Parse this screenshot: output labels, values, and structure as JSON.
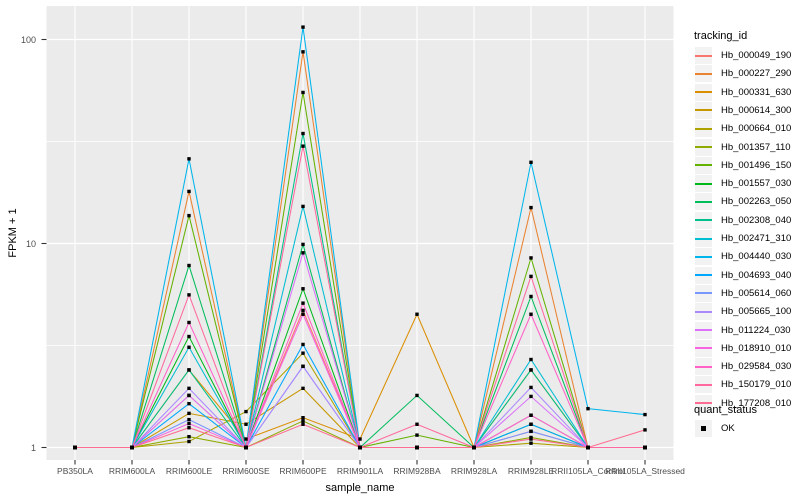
{
  "figure": {
    "background": "#FFFFFF",
    "panel_background": "#EBEBEB",
    "grid_color": "#FFFFFF",
    "tick_color": "#333333",
    "tick_label_color": "#4D4D4D",
    "point_color": "#000000"
  },
  "legend": {
    "tracking_title": "tracking_id",
    "quant_title": "quant_status",
    "quant_items": [
      {
        "label": "OK",
        "shape": "filled-square",
        "color": "#000000"
      }
    ]
  },
  "chart_data": {
    "type": "line",
    "title": "",
    "xlabel": "sample_name",
    "ylabel": "FPKM + 1",
    "y_scale": "log10",
    "y_ticks": [
      1,
      10,
      100
    ],
    "y_minor_ticks": [
      3.162,
      31.62
    ],
    "ylim": [
      0.79,
      146
    ],
    "grid": true,
    "legend_position": "right",
    "point_shape": "filled-square",
    "point_color": "#000000",
    "categories": [
      "PB350LA",
      "RRIM600LA",
      "RRIM600LE",
      "RRIM600SE",
      "RRIM600PE",
      "RRIM901LA",
      "RRIM928BA",
      "RRIM928LA",
      "RRIM928LE",
      "RRII105LA_Control",
      "RRII105LA_Stressed"
    ],
    "series": [
      {
        "name": "Hb_000049_190",
        "color": "#F8766D",
        "values": [
          1,
          1,
          1.8,
          1,
          4.7,
          1,
          1,
          1,
          1.2,
          1,
          1
        ]
      },
      {
        "name": "Hb_000227_290",
        "color": "#EA8331",
        "values": [
          1,
          1,
          18,
          1,
          87,
          1,
          1,
          1,
          15,
          1,
          1
        ]
      },
      {
        "name": "Hb_000331_630",
        "color": "#DB8E00",
        "values": [
          1,
          1,
          2.4,
          1.1,
          1.4,
          1.1,
          4.5,
          1,
          2.4,
          1,
          1
        ]
      },
      {
        "name": "Hb_000614_300",
        "color": "#C79800",
        "values": [
          1,
          1,
          1.47,
          1.3,
          1.95,
          1,
          1,
          1,
          1.44,
          1,
          1
        ]
      },
      {
        "name": "Hb_000664_010",
        "color": "#AEA200",
        "values": [
          1,
          1,
          1.07,
          1.5,
          2.9,
          1,
          1,
          1,
          1.05,
          1,
          1
        ]
      },
      {
        "name": "Hb_001357_110",
        "color": "#8FAA00",
        "values": [
          1,
          1,
          1.13,
          1,
          1.35,
          1,
          1,
          1,
          1.12,
          1,
          1
        ]
      },
      {
        "name": "Hb_001496_150",
        "color": "#64B200",
        "values": [
          1,
          1,
          13.7,
          1,
          55,
          1,
          1.15,
          1,
          8.5,
          1,
          1
        ]
      },
      {
        "name": "Hb_001557_030",
        "color": "#00B81B",
        "values": [
          1,
          1,
          3.5,
          1,
          6,
          1,
          1,
          1,
          1.3,
          1,
          1
        ]
      },
      {
        "name": "Hb_002263_050",
        "color": "#00BD5C",
        "values": [
          1,
          1,
          7.8,
          1,
          9.9,
          1,
          1.8,
          1,
          5.5,
          1,
          1
        ]
      },
      {
        "name": "Hb_002308_040",
        "color": "#00C08B",
        "values": [
          1,
          1,
          2.4,
          1,
          34.6,
          1,
          1,
          1,
          2.4,
          1,
          1
        ]
      },
      {
        "name": "Hb_002471_310",
        "color": "#00BDD2",
        "values": [
          1,
          1,
          3.1,
          1,
          15.2,
          1,
          1,
          1,
          2.7,
          1,
          1
        ]
      },
      {
        "name": "Hb_004440_030",
        "color": "#00B5EC",
        "values": [
          1,
          1,
          26,
          1,
          115,
          1,
          1,
          1,
          25,
          1.55,
          1.45
        ]
      },
      {
        "name": "Hb_004693_040",
        "color": "#00A7FF",
        "values": [
          1,
          1,
          1.64,
          1,
          3.2,
          1,
          1,
          1,
          1.3,
          1,
          1
        ]
      },
      {
        "name": "Hb_005614_060",
        "color": "#7997FF",
        "values": [
          1,
          1,
          1.37,
          1,
          2.5,
          1,
          1,
          1,
          1.2,
          1,
          1
        ]
      },
      {
        "name": "Hb_005665_100",
        "color": "#AC88FF",
        "values": [
          1,
          1,
          1.95,
          1,
          2.5,
          1,
          1,
          1,
          1.97,
          1,
          1
        ]
      },
      {
        "name": "Hb_011224_030",
        "color": "#DC71FA",
        "values": [
          1,
          1,
          1.8,
          1,
          9,
          1,
          1,
          1,
          1.78,
          1,
          1
        ]
      },
      {
        "name": "Hb_018910_010",
        "color": "#F763E0",
        "values": [
          1,
          1,
          1.31,
          1,
          4.5,
          1,
          1,
          1,
          1.44,
          1,
          1
        ]
      },
      {
        "name": "Hb_029584_030",
        "color": "#FF61C7",
        "values": [
          1,
          1,
          4.1,
          1,
          5.1,
          1,
          1,
          1,
          4.5,
          1,
          1
        ]
      },
      {
        "name": "Hb_150179_010",
        "color": "#FF689E",
        "values": [
          1,
          1,
          5.6,
          1,
          30,
          1,
          1.3,
          1,
          6.9,
          1,
          1
        ]
      },
      {
        "name": "Hb_177208_010",
        "color": "#FF6C91",
        "values": [
          1,
          1,
          1.25,
          1,
          1.3,
          1,
          1,
          1,
          1.1,
          1,
          1.22
        ]
      }
    ]
  }
}
